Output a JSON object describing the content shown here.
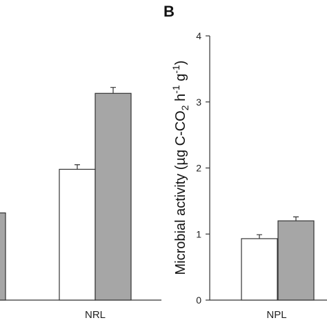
{
  "chart_data": [
    {
      "panel_label": "",
      "type": "bar",
      "categories": [
        "",
        "NRL"
      ],
      "series": [
        {
          "name": "",
          "color": "#ffffff",
          "values": [
            null,
            1.98
          ]
        },
        {
          "name": "",
          "color": "#a6a6a6",
          "values": [
            1.32,
            3.13
          ]
        }
      ],
      "errors": [
        {
          "values": [
            null,
            0.07
          ]
        },
        {
          "values": [
            null,
            0.09
          ]
        }
      ],
      "ylim": [
        0,
        4
      ]
    },
    {
      "panel_label": "B",
      "type": "bar",
      "categories": [
        "NPL"
      ],
      "series": [
        {
          "name": "",
          "color": "#ffffff",
          "values": [
            0.93
          ]
        },
        {
          "name": "",
          "color": "#a6a6a6",
          "values": [
            1.2
          ]
        }
      ],
      "errors": [
        {
          "values": [
            0.06
          ]
        },
        {
          "values": [
            0.06
          ]
        }
      ],
      "ylim": [
        0,
        4
      ],
      "yticks": [
        0,
        1,
        2,
        3,
        4
      ],
      "ylabel": {
        "main": "Microbial activity (µg C-CO",
        "sub1": "2",
        "mid": " h",
        "sup1": "-1",
        "mid2": " g",
        "sup2": "-1",
        "end": ")"
      }
    }
  ]
}
